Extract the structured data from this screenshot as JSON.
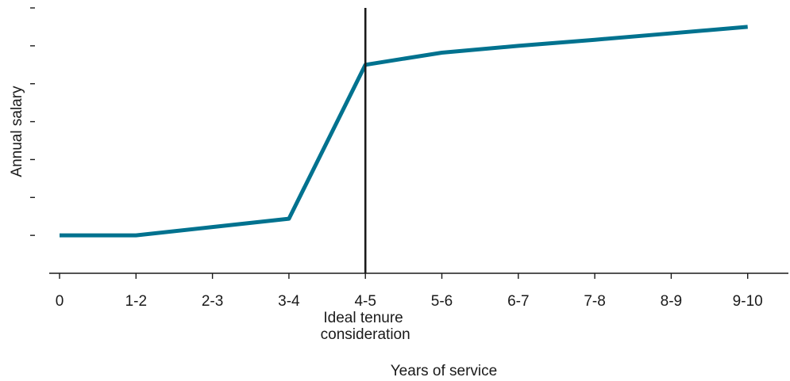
{
  "chart_data": {
    "type": "line",
    "title": "",
    "xlabel": "Years of service",
    "ylabel": "Annual salary",
    "categories": [
      "0",
      "1-2",
      "2-3",
      "3-4",
      "4-5",
      "5-6",
      "6-7",
      "7-8",
      "8-9",
      "9-10"
    ],
    "series": [
      {
        "values": [
          1.0,
          1.0,
          1.22,
          1.44,
          5.5,
          5.82,
          6.0,
          6.16,
          6.33,
          6.5
        ]
      }
    ],
    "ylim": [
      0,
      7
    ],
    "y_tick_count": 7,
    "y_tick_labels_shown": false,
    "grid": false,
    "legend": "none",
    "series_color": "#00728f",
    "reference_line": {
      "category": "4-5",
      "label_lines": [
        "Ideal tenure",
        "consideration"
      ],
      "color": "#1a1a1a"
    }
  }
}
